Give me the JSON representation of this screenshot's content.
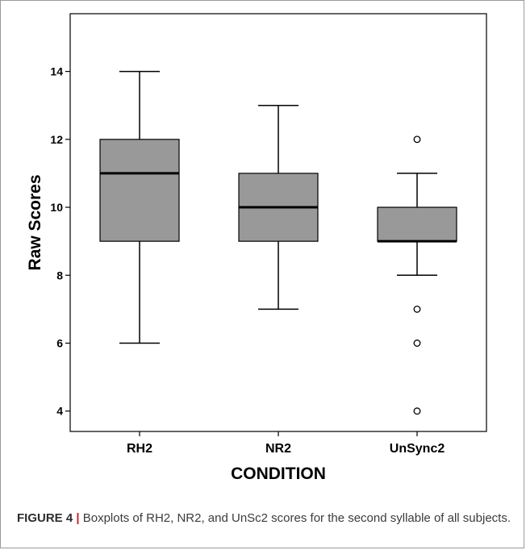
{
  "figure": {
    "caption_label": "FIGURE 4",
    "caption_separator": "|",
    "caption_text": "Boxplots of RH2, NR2, and UnSc2 scores for the second syllable of all subjects."
  },
  "chart_data": {
    "type": "boxplot",
    "title": "",
    "xlabel": "CONDITION",
    "ylabel": "Raw Scores",
    "ylim": [
      3.4,
      15.7
    ],
    "yticks": [
      4,
      6,
      8,
      10,
      12,
      14
    ],
    "categories": [
      "RH2",
      "NR2",
      "UnSync2"
    ],
    "grid": false,
    "legend": "none",
    "colors": {
      "box_fill": "#999999",
      "stroke": "#000000",
      "outlier_fill": "#ffffff"
    },
    "boxes": [
      {
        "category": "RH2",
        "whisker_low": 6,
        "q1": 9,
        "median": 11,
        "q3": 12,
        "whisker_high": 14,
        "outliers": []
      },
      {
        "category": "NR2",
        "whisker_low": 7,
        "q1": 9,
        "median": 10,
        "q3": 11,
        "whisker_high": 13,
        "outliers": []
      },
      {
        "category": "UnSync2",
        "whisker_low": 8,
        "q1": 9,
        "median": 9,
        "q3": 10,
        "whisker_high": 11,
        "outliers": [
          12,
          7,
          6,
          4
        ]
      }
    ]
  }
}
